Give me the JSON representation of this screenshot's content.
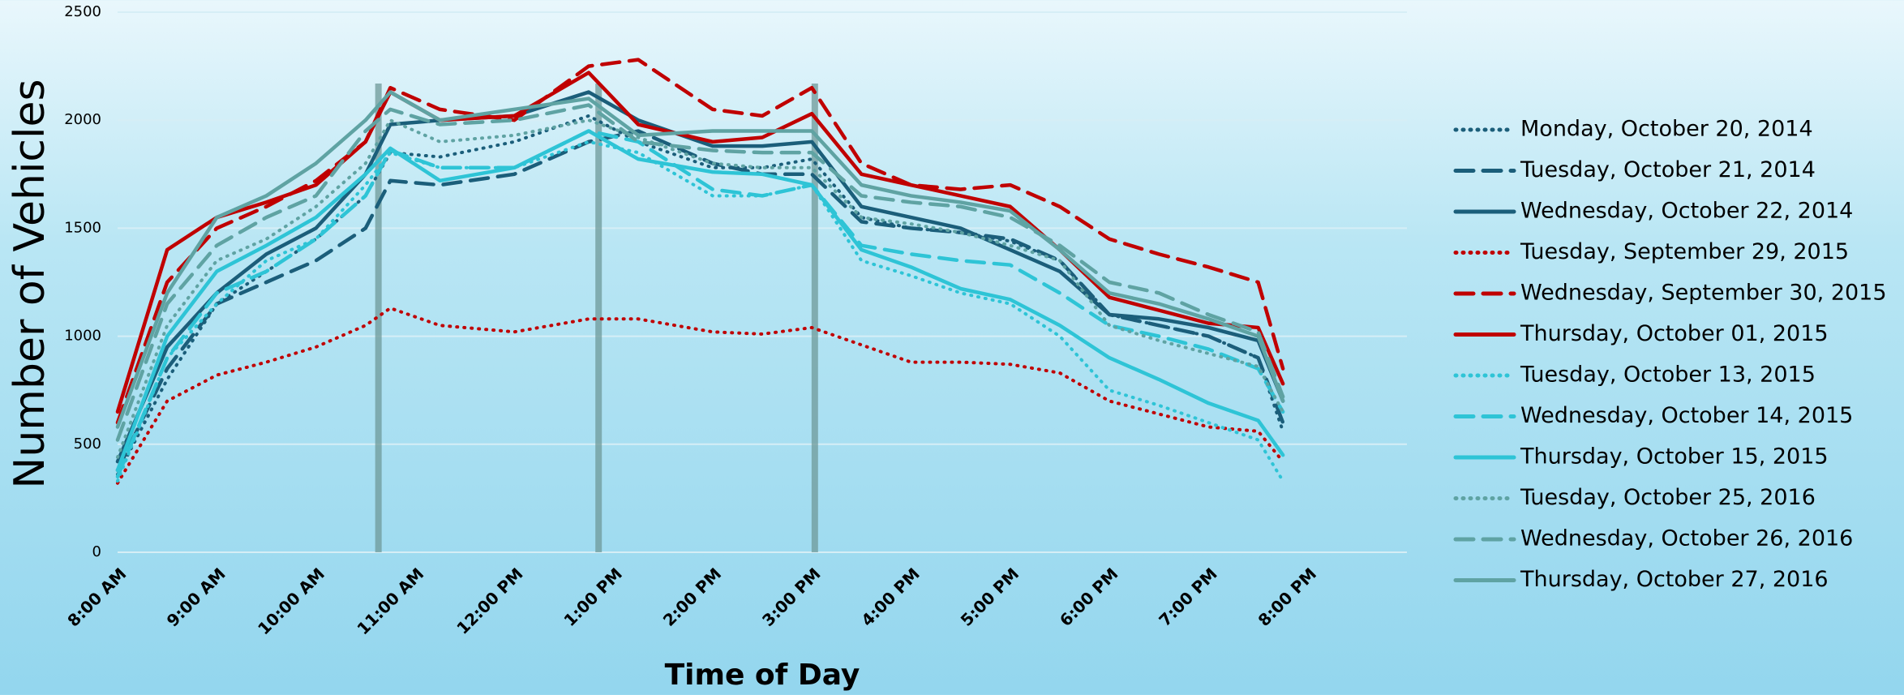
{
  "chart_data": {
    "type": "line",
    "ylabel": "Number of Vehicles",
    "xlabel": "Time of Day",
    "x": [
      8,
      8.5,
      9,
      9.5,
      10,
      10.5,
      10.75,
      11.25,
      12,
      12.75,
      13.25,
      14,
      14.5,
      15,
      15.5,
      16,
      16.5,
      17,
      17.5,
      18,
      18.5,
      19,
      19.5,
      19.75
    ],
    "xlim": [
      8,
      21
    ],
    "xticks": [
      {
        "value": 8,
        "label": "8:00 AM"
      },
      {
        "value": 9,
        "label": "9:00 AM"
      },
      {
        "value": 10,
        "label": "10:00 AM"
      },
      {
        "value": 11,
        "label": "11:00 AM"
      },
      {
        "value": 12,
        "label": "12:00 PM"
      },
      {
        "value": 13,
        "label": "1:00 PM"
      },
      {
        "value": 14,
        "label": "2:00 PM"
      },
      {
        "value": 15,
        "label": "3:00 PM"
      },
      {
        "value": 16,
        "label": "4:00 PM"
      },
      {
        "value": 17,
        "label": "5:00 PM"
      },
      {
        "value": 18,
        "label": "6:00 PM"
      },
      {
        "value": 19,
        "label": "7:00 PM"
      },
      {
        "value": 20,
        "label": "8:00 PM"
      }
    ],
    "ylim": [
      0,
      2500
    ],
    "yticks": [
      0,
      500,
      1000,
      1500,
      2000,
      2500
    ],
    "grid": true,
    "reference_lines_x": [
      10.63,
      12.85,
      15.03
    ],
    "series": [
      {
        "name": "Monday, October 20, 2014",
        "color": "#1b5e7a",
        "style": "dotted",
        "values": [
          360,
          800,
          1150,
          1300,
          1450,
          1650,
          1850,
          1830,
          1900,
          2020,
          1900,
          1780,
          1780,
          1820,
          1550,
          1500,
          1480,
          1440,
          1350,
          1100,
          1050,
          1000,
          900,
          560
        ]
      },
      {
        "name": "Tuesday, October 21, 2014",
        "color": "#1b5e7a",
        "style": "dashed",
        "values": [
          380,
          850,
          1150,
          1250,
          1350,
          1500,
          1720,
          1700,
          1750,
          1900,
          1950,
          1800,
          1750,
          1750,
          1530,
          1500,
          1480,
          1450,
          1350,
          1100,
          1050,
          1000,
          900,
          600
        ]
      },
      {
        "name": "Wednesday, October 22, 2014",
        "color": "#1b5e7a",
        "style": "solid",
        "values": [
          420,
          950,
          1200,
          1380,
          1500,
          1750,
          1980,
          2000,
          2020,
          2130,
          2000,
          1880,
          1880,
          1900,
          1600,
          1550,
          1500,
          1400,
          1300,
          1100,
          1080,
          1040,
          980,
          700
        ]
      },
      {
        "name": "Tuesday, September 29, 2015",
        "color": "#c00000",
        "style": "dotted",
        "values": [
          320,
          700,
          820,
          880,
          950,
          1050,
          1130,
          1050,
          1020,
          1080,
          1080,
          1020,
          1010,
          1040,
          960,
          880,
          880,
          870,
          830,
          700,
          640,
          580,
          560,
          420
        ]
      },
      {
        "name": "Wednesday, September 30, 2015",
        "color": "#c00000",
        "style": "dashed",
        "values": [
          600,
          1250,
          1500,
          1600,
          1720,
          1900,
          2150,
          2050,
          2000,
          2250,
          2280,
          2050,
          2020,
          2150,
          1800,
          1700,
          1680,
          1700,
          1600,
          1450,
          1380,
          1320,
          1250,
          850
        ]
      },
      {
        "name": "Thursday, October 01, 2015",
        "color": "#c00000",
        "style": "solid",
        "values": [
          650,
          1400,
          1550,
          1620,
          1700,
          1900,
          2130,
          2000,
          2020,
          2220,
          1980,
          1900,
          1920,
          2030,
          1750,
          1700,
          1650,
          1600,
          1400,
          1180,
          1120,
          1060,
          1040,
          780
        ]
      },
      {
        "name": "Tuesday, October 13, 2015",
        "color": "#2ec4d6",
        "style": "dotted",
        "values": [
          330,
          900,
          1150,
          1350,
          1450,
          1700,
          1850,
          1780,
          1780,
          1900,
          1850,
          1650,
          1650,
          1700,
          1350,
          1280,
          1200,
          1150,
          1000,
          750,
          680,
          600,
          520,
          330
        ]
      },
      {
        "name": "Wednesday, October 14, 2015",
        "color": "#2ec4d6",
        "style": "dashed",
        "values": [
          350,
          900,
          1200,
          1300,
          1450,
          1650,
          1860,
          1780,
          1780,
          1950,
          1900,
          1680,
          1650,
          1700,
          1420,
          1380,
          1350,
          1330,
          1200,
          1050,
          1000,
          940,
          850,
          650
        ]
      },
      {
        "name": "Thursday, October 15, 2015",
        "color": "#2ec4d6",
        "style": "solid",
        "values": [
          380,
          1000,
          1300,
          1420,
          1550,
          1750,
          1870,
          1720,
          1780,
          1950,
          1820,
          1760,
          1750,
          1700,
          1400,
          1320,
          1220,
          1170,
          1050,
          900,
          800,
          690,
          610,
          450
        ]
      },
      {
        "name": "Tuesday, October 25, 2016",
        "color": "#5fa3a3",
        "style": "dotted",
        "values": [
          440,
          1050,
          1350,
          1450,
          1600,
          1800,
          2000,
          1900,
          1930,
          2000,
          1920,
          1800,
          1780,
          1780,
          1550,
          1520,
          1480,
          1420,
          1350,
          1050,
          980,
          920,
          860,
          650
        ]
      },
      {
        "name": "Wednesday, October 26, 2016",
        "color": "#5fa3a3",
        "style": "dashed",
        "values": [
          520,
          1150,
          1420,
          1550,
          1650,
          1950,
          2050,
          1980,
          2000,
          2070,
          1900,
          1860,
          1850,
          1850,
          1650,
          1620,
          1600,
          1550,
          1420,
          1250,
          1200,
          1100,
          1020,
          720
        ]
      },
      {
        "name": "Thursday, October 27, 2016",
        "color": "#5fa3a3",
        "style": "solid",
        "values": [
          580,
          1200,
          1550,
          1650,
          1800,
          2000,
          2130,
          2000,
          2050,
          2100,
          1930,
          1950,
          1950,
          1950,
          1700,
          1650,
          1620,
          1580,
          1400,
          1200,
          1150,
          1080,
          1000,
          700
        ]
      }
    ]
  }
}
